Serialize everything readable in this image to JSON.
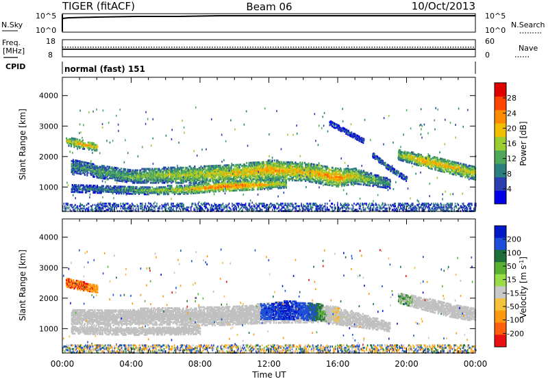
{
  "header": {
    "radar": "TIGER (fitACF)",
    "beam": "Beam 06",
    "date": "10/Oct/2013"
  },
  "strips": {
    "nsky": {
      "left_label": "N.Sky",
      "right_label": "N.Search",
      "ticks_left": [
        "10^5",
        "10^0"
      ],
      "ticks_right": [
        "10^5",
        "10^0"
      ]
    },
    "freq": {
      "left_label": "Freq.",
      "left_unit": "[MHz]",
      "right_label": "Nave",
      "ticks_left": [
        "18",
        "8"
      ],
      "ticks_right": [
        "60",
        "0"
      ]
    },
    "cpid": {
      "label": "CPID",
      "value": "normal (fast) 151"
    }
  },
  "colors": {
    "power_scale": [
      "#0000e6",
      "#2a3fb0",
      "#2c7f7f",
      "#4fa85a",
      "#9acd32",
      "#f0c000",
      "#ff8c00",
      "#ff4500",
      "#e00000"
    ],
    "velocity_scale": [
      "#0018c8",
      "#1e4fd8",
      "#1e6e3a",
      "#5ab030",
      "#98dd48",
      "#c8c8c8",
      "#f6c23c",
      "#ff9a10",
      "#ff6010",
      "#e81010"
    ],
    "ground_scatter": "#c0c0c0"
  },
  "chart_data": [
    {
      "type": "heatmap",
      "panel": "power",
      "x_title": "",
      "y_title": "Slant Range [km]",
      "x_range_hours": [
        0,
        24
      ],
      "ylim": [
        200,
        4600
      ],
      "y_ticks": [
        1000,
        2000,
        3000,
        4000
      ],
      "grid": false,
      "colorbar": {
        "title": "Power [dB]",
        "range": [
          0,
          32
        ],
        "ticks": [
          4,
          8,
          12,
          16,
          20,
          24,
          28
        ]
      },
      "bands": [
        {
          "name": "main",
          "x": [
            0.5,
            2,
            4,
            6,
            8,
            10,
            12,
            14,
            16,
            17,
            19
          ],
          "center": [
            1700,
            1500,
            1350,
            1380,
            1400,
            1450,
            1550,
            1500,
            1300,
            1350,
            1100
          ],
          "thick": [
            220,
            200,
            220,
            250,
            280,
            280,
            320,
            300,
            300,
            250,
            150
          ],
          "level": [
            10,
            12,
            14,
            16,
            18,
            20,
            22,
            20,
            24,
            18,
            10
          ]
        },
        {
          "name": "lower",
          "x": [
            0.5,
            3,
            5,
            7,
            9,
            11,
            13
          ],
          "center": [
            950,
            900,
            880,
            900,
            1000,
            1050,
            1100
          ],
          "thick": [
            120,
            120,
            130,
            140,
            150,
            150,
            130
          ],
          "level": [
            8,
            10,
            14,
            18,
            26,
            24,
            16
          ]
        },
        {
          "name": "upper-left",
          "x": [
            0.2,
            1,
            2
          ],
          "center": [
            2500,
            2400,
            2300
          ],
          "thick": [
            140,
            140,
            120
          ],
          "level": [
            16,
            22,
            20
          ]
        },
        {
          "name": "rising",
          "x": [
            15.5,
            16.5,
            17.5
          ],
          "center": [
            3100,
            2800,
            2500
          ],
          "thick": [
            80,
            80,
            80
          ],
          "level": [
            6,
            6,
            6
          ]
        },
        {
          "name": "afternoon",
          "x": [
            19.5,
            21,
            22.5,
            24
          ],
          "center": [
            2050,
            1850,
            1650,
            1450
          ],
          "thick": [
            160,
            200,
            220,
            220
          ],
          "level": [
            16,
            22,
            20,
            18
          ]
        },
        {
          "name": "descending",
          "x": [
            18,
            19,
            20
          ],
          "center": [
            2050,
            1600,
            1250
          ],
          "thick": [
            80,
            80,
            80
          ],
          "level": [
            8,
            8,
            8
          ]
        }
      ]
    },
    {
      "type": "heatmap",
      "panel": "velocity",
      "x_title": "Time UT",
      "x_ticks": [
        "00:00",
        "04:00",
        "08:00",
        "12:00",
        "16:00",
        "20:00",
        "00:00"
      ],
      "x_range_hours": [
        0,
        24
      ],
      "ylim": [
        200,
        4600
      ],
      "y_title": "Slant Range [km]",
      "y_ticks": [
        1000,
        2000,
        3000,
        4000
      ],
      "grid": false,
      "colorbar": {
        "title": "Velocity [m s^-1]",
        "range": [
          -250,
          250
        ],
        "labels": [
          "200",
          "100",
          "50",
          "15",
          "-15",
          "-50",
          "-100",
          "-200"
        ]
      },
      "bands": [
        {
          "name": "ground-scatter",
          "x": [
            0.5,
            3,
            6,
            9,
            12,
            15,
            17,
            19
          ],
          "center": [
            1350,
            1350,
            1400,
            1400,
            1500,
            1500,
            1300,
            1050
          ],
          "thick": [
            250,
            260,
            280,
            300,
            320,
            300,
            250,
            150
          ],
          "velocity": [
            0,
            0,
            0,
            0,
            0,
            0,
            0,
            0
          ]
        },
        {
          "name": "lower-ground",
          "x": [
            0.5,
            4,
            8
          ],
          "center": [
            950,
            900,
            950
          ],
          "thick": [
            120,
            120,
            140
          ],
          "velocity": [
            0,
            0,
            0
          ]
        },
        {
          "name": "upper-left",
          "x": [
            0.2,
            1,
            2
          ],
          "center": [
            2500,
            2400,
            2300
          ],
          "thick": [
            140,
            140,
            120
          ],
          "velocity": [
            -180,
            -200,
            -150
          ]
        },
        {
          "name": "ionospheric",
          "x": [
            11.5,
            13,
            14.5,
            16
          ],
          "center": [
            1550,
            1600,
            1550,
            1450
          ],
          "thick": [
            250,
            300,
            280,
            250
          ],
          "velocity": [
            150,
            220,
            120,
            -70
          ]
        },
        {
          "name": "afternoon",
          "x": [
            19.5,
            21,
            22.5,
            24
          ],
          "center": [
            2000,
            1800,
            1600,
            1450
          ],
          "thick": [
            160,
            200,
            220,
            220
          ],
          "velocity": [
            30,
            0,
            0,
            0
          ]
        }
      ]
    }
  ]
}
